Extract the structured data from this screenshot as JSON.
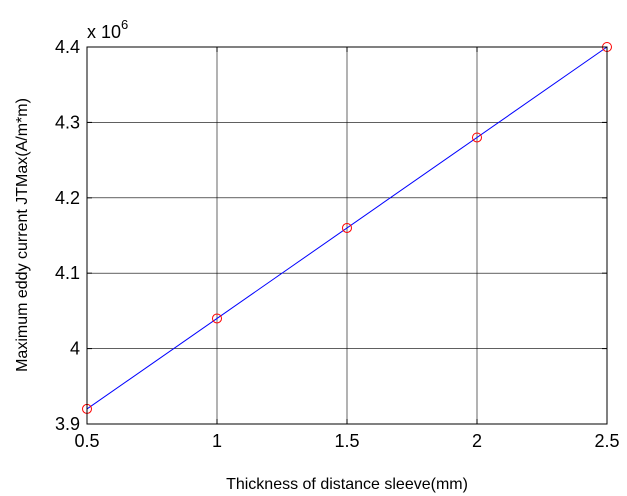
{
  "chart_data": {
    "type": "line",
    "xlabel": "Thickness of distance sleeve(mm)",
    "ylabel": "Maximum eddy current JTMax(A/m*m)",
    "y_multiplier": {
      "base": "x 10",
      "exponent": "6"
    },
    "xlim": [
      0.5,
      2.5
    ],
    "ylim": [
      3.9,
      4.4
    ],
    "x_ticks": [
      0.5,
      1,
      1.5,
      2,
      2.5
    ],
    "x_tick_labels": [
      "0.5",
      "1",
      "1.5",
      "2",
      "2.5"
    ],
    "y_ticks": [
      3.9,
      4.0,
      4.1,
      4.2,
      4.3,
      4.4
    ],
    "y_tick_labels": [
      "3.9",
      "4",
      "4.1",
      "4.2",
      "4.3",
      "4.4"
    ],
    "grid": true,
    "series": [
      {
        "style": "fit-line",
        "color": "#0000ff",
        "x": [
          0.5,
          2.5
        ],
        "y": [
          3.92,
          4.4
        ]
      },
      {
        "style": "circle-markers",
        "color": "#ff0000",
        "x": [
          0.5,
          1.0,
          1.5,
          2.0,
          2.5
        ],
        "y": [
          3.92,
          4.04,
          4.16,
          4.28,
          4.4
        ]
      }
    ]
  }
}
